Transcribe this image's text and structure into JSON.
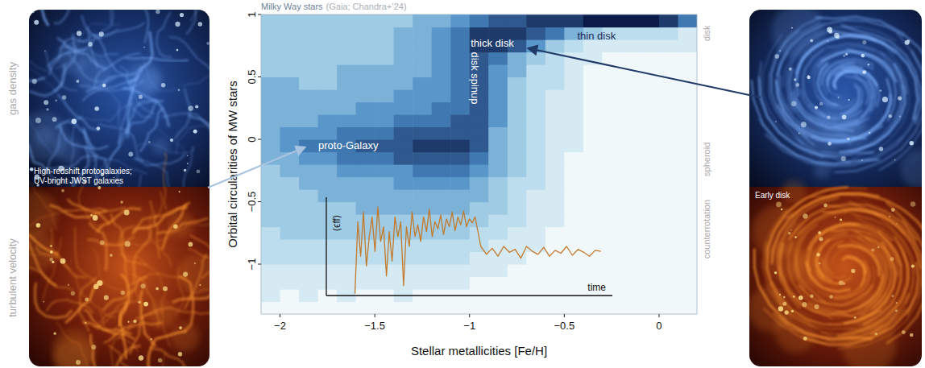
{
  "chart_data": [
    {
      "type": "heatmap",
      "title": "Milky Way stars",
      "subtitle": "(Gaia; Chandra+’24)",
      "x_label": "Stellar metallicities [Fe/H]",
      "y_label": "Orbital circularities of MW stars",
      "xlim": [
        -2.1,
        0.2
      ],
      "ylim": [
        -1.4,
        1.0
      ],
      "xticks": [
        {
          "value": -2,
          "label": "−2"
        },
        {
          "value": -1.5,
          "label": "−1.5"
        },
        {
          "value": -1,
          "label": "−1"
        },
        {
          "value": -0.5,
          "label": "−0.5"
        },
        0
      ],
      "yticks": [
        {
          "value": -1,
          "label": "−1"
        },
        {
          "value": -0.5,
          "label": "−0.5"
        },
        0,
        0.5,
        1
      ],
      "x_bins": [
        -2.1,
        -2.0,
        -1.9,
        -1.8,
        -1.7,
        -1.6,
        -1.5,
        -1.4,
        -1.3,
        -1.2,
        -1.1,
        -1.0,
        -0.9,
        -0.8,
        -0.7,
        -0.6,
        -0.5,
        -0.4,
        -0.3,
        -0.2,
        -0.1,
        0,
        0.1,
        0.2
      ],
      "y_bins": [
        -1.4,
        -1.3,
        -1.2,
        -1.1,
        -1.0,
        -0.9,
        -0.8,
        -0.7,
        -0.6,
        -0.5,
        -0.4,
        -0.3,
        -0.2,
        -0.1,
        0,
        0.1,
        0.2,
        0.3,
        0.4,
        0.5,
        0.6,
        0.7,
        0.8,
        0.9,
        1.0
      ],
      "z": [
        [
          0,
          0,
          0,
          0,
          0,
          0,
          0,
          0,
          0,
          0,
          0,
          0,
          0,
          0,
          0,
          0,
          0,
          0,
          0,
          0,
          0,
          0,
          0
        ],
        [
          1,
          0,
          1,
          0,
          1,
          0,
          0,
          1,
          0,
          0,
          0,
          0,
          0,
          0,
          0,
          0,
          0,
          0,
          0,
          0,
          0,
          0,
          0
        ],
        [
          1,
          1,
          1,
          1,
          1,
          1,
          1,
          1,
          1,
          1,
          1,
          0,
          0,
          0,
          0,
          0,
          0,
          0,
          0,
          0,
          0,
          0,
          0
        ],
        [
          1,
          1,
          1,
          1,
          1,
          1,
          1,
          1,
          1,
          1,
          1,
          1,
          1,
          0,
          0,
          0,
          0,
          0,
          0,
          0,
          0,
          0,
          0
        ],
        [
          2,
          2,
          2,
          2,
          2,
          2,
          2,
          2,
          2,
          2,
          2,
          1,
          1,
          1,
          0,
          0,
          0,
          0,
          0,
          0,
          0,
          0,
          0
        ],
        [
          2,
          2,
          2,
          2,
          2,
          2,
          2,
          2,
          2,
          2,
          2,
          2,
          1,
          1,
          1,
          0,
          0,
          0,
          0,
          0,
          0,
          0,
          0
        ],
        [
          2,
          3,
          3,
          3,
          3,
          3,
          3,
          3,
          3,
          3,
          3,
          2,
          2,
          1,
          1,
          0,
          0,
          0,
          0,
          0,
          0,
          0,
          0
        ],
        [
          3,
          3,
          3,
          3,
          3,
          3,
          3,
          3,
          3,
          3,
          3,
          3,
          2,
          2,
          1,
          1,
          0,
          0,
          0,
          0,
          0,
          0,
          0
        ],
        [
          3,
          3,
          3,
          3,
          3,
          4,
          4,
          4,
          4,
          4,
          4,
          3,
          3,
          2,
          1,
          1,
          0,
          0,
          0,
          0,
          0,
          0,
          0
        ],
        [
          3,
          3,
          3,
          4,
          4,
          4,
          4,
          4,
          4,
          4,
          4,
          4,
          3,
          2,
          1,
          1,
          0,
          0,
          0,
          0,
          0,
          0,
          0
        ],
        [
          3,
          3,
          4,
          4,
          4,
          4,
          4,
          5,
          5,
          5,
          5,
          4,
          3,
          2,
          2,
          1,
          0,
          0,
          0,
          0,
          0,
          0,
          0
        ],
        [
          3,
          4,
          4,
          4,
          5,
          5,
          5,
          5,
          6,
          6,
          6,
          5,
          4,
          3,
          2,
          1,
          0,
          0,
          0,
          0,
          0,
          0,
          0
        ],
        [
          4,
          4,
          5,
          5,
          6,
          6,
          6,
          7,
          7,
          7,
          7,
          6,
          4,
          3,
          2,
          1,
          0,
          0,
          0,
          0,
          0,
          0,
          0
        ],
        [
          4,
          5,
          6,
          6,
          6,
          7,
          7,
          7,
          8,
          8,
          8,
          7,
          4,
          3,
          2,
          1,
          1,
          0,
          0,
          0,
          0,
          0,
          0
        ],
        [
          4,
          5,
          5,
          5,
          6,
          6,
          6,
          7,
          7,
          7,
          7,
          7,
          4,
          3,
          2,
          1,
          1,
          0,
          0,
          0,
          0,
          0,
          0
        ],
        [
          4,
          4,
          4,
          5,
          5,
          5,
          5,
          6,
          6,
          6,
          7,
          7,
          5,
          3,
          2,
          1,
          1,
          0,
          0,
          0,
          0,
          0,
          0
        ],
        [
          4,
          4,
          4,
          4,
          4,
          5,
          5,
          5,
          5,
          6,
          6,
          7,
          5,
          3,
          2,
          1,
          1,
          0,
          0,
          0,
          0,
          0,
          0
        ],
        [
          4,
          4,
          4,
          4,
          4,
          4,
          4,
          5,
          5,
          5,
          6,
          7,
          5,
          3,
          2,
          1,
          1,
          0,
          0,
          0,
          0,
          0,
          0
        ],
        [
          4,
          4,
          3,
          3,
          4,
          4,
          4,
          4,
          5,
          5,
          6,
          7,
          5,
          3,
          2,
          2,
          1,
          0,
          0,
          0,
          0,
          0,
          0
        ],
        [
          3,
          3,
          3,
          3,
          4,
          4,
          4,
          4,
          4,
          5,
          6,
          7,
          5,
          4,
          2,
          2,
          1,
          0,
          0,
          0,
          0,
          0,
          0
        ],
        [
          3,
          3,
          3,
          3,
          3,
          3,
          3,
          4,
          4,
          5,
          6,
          7,
          6,
          4,
          3,
          2,
          1,
          1,
          0,
          0,
          0,
          0,
          0
        ],
        [
          3,
          3,
          3,
          3,
          3,
          3,
          3,
          4,
          4,
          5,
          6,
          8,
          8,
          7,
          5,
          3,
          2,
          1,
          1,
          1,
          1,
          1,
          1
        ],
        [
          3,
          3,
          3,
          3,
          3,
          3,
          3,
          4,
          4,
          5,
          6,
          8,
          8,
          8,
          7,
          6,
          4,
          3,
          2,
          2,
          2,
          2,
          1
        ],
        [
          3,
          3,
          3,
          3,
          3,
          3,
          3,
          3,
          4,
          4,
          5,
          6,
          7,
          7,
          8,
          8,
          8,
          9,
          9,
          9,
          9,
          8,
          6
        ]
      ],
      "zlim": [
        0,
        9
      ],
      "color": "#0b1a48",
      "annotations": [
        {
          "text": "proto-Galaxy",
          "x": -1.64,
          "y": -0.05,
          "color": "#ffffff"
        },
        {
          "text": "disk spinup",
          "x": -0.97,
          "y": 0.49,
          "color": "#ffffff",
          "orientation": "vertical"
        },
        {
          "text": "thick disk",
          "x": -0.88,
          "y": 0.77,
          "color": "#ffffff"
        },
        {
          "text": "thin disk",
          "x": -0.33,
          "y": 0.83,
          "color": "#1b2a5a"
        }
      ],
      "region_labels": [
        {
          "text": "disk",
          "y": 0.85
        },
        {
          "text": "spheroid",
          "y": -0.16
        },
        {
          "text": "counterrotation",
          "y": -0.72
        }
      ]
    },
    {
      "type": "line",
      "x_label": "time",
      "y_label": "⟨ϵff⟩",
      "xlim": [
        0,
        1
      ],
      "ylim": [
        0,
        1
      ],
      "tick_labels": false,
      "color": "#c27a2c",
      "x": [
        0.1,
        0.11,
        0.12,
        0.13,
        0.14,
        0.15,
        0.16,
        0.17,
        0.18,
        0.19,
        0.2,
        0.21,
        0.22,
        0.23,
        0.24,
        0.25,
        0.26,
        0.27,
        0.28,
        0.29,
        0.3,
        0.31,
        0.32,
        0.33,
        0.34,
        0.35,
        0.36,
        0.37,
        0.38,
        0.39,
        0.4,
        0.41,
        0.42,
        0.43,
        0.44,
        0.45,
        0.46,
        0.47,
        0.48,
        0.49,
        0.5,
        0.51,
        0.52,
        0.54,
        0.56,
        0.58,
        0.6,
        0.62,
        0.64,
        0.66,
        0.68,
        0.7,
        0.72,
        0.74,
        0.76,
        0.78,
        0.8,
        0.82,
        0.84,
        0.86,
        0.88,
        0.9,
        0.92,
        0.94,
        0.96
      ],
      "values": [
        0.02,
        0.75,
        0.4,
        0.85,
        0.3,
        0.6,
        0.8,
        0.45,
        0.9,
        0.55,
        0.7,
        0.2,
        0.65,
        0.35,
        0.8,
        0.6,
        0.75,
        0.1,
        0.7,
        0.5,
        0.85,
        0.6,
        0.72,
        0.55,
        0.8,
        0.65,
        0.88,
        0.6,
        0.75,
        0.68,
        0.82,
        0.62,
        0.78,
        0.7,
        0.85,
        0.66,
        0.8,
        0.72,
        0.86,
        0.7,
        0.78,
        0.74,
        0.8,
        0.5,
        0.42,
        0.48,
        0.4,
        0.5,
        0.44,
        0.47,
        0.38,
        0.5,
        0.45,
        0.42,
        0.49,
        0.4,
        0.46,
        0.43,
        0.5,
        0.41,
        0.47,
        0.44,
        0.4,
        0.46,
        0.45
      ]
    }
  ],
  "side_panels": {
    "left": {
      "top_label": "gas density",
      "bottom_label": "turbulent velocity",
      "caption": [
        "High-redshift protogalaxies;",
        "UV-bright JWST galaxies"
      ]
    },
    "right": {
      "caption": "Early disk"
    }
  }
}
